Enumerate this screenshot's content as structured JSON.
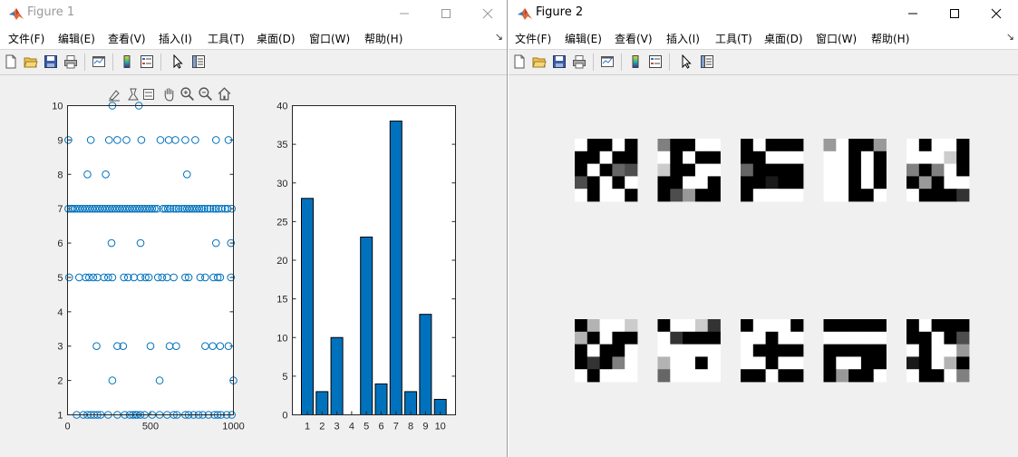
{
  "window1": {
    "title": "Figure 1",
    "menu": [
      "文件(F)",
      "编辑(E)",
      "查看(V)",
      "插入(I)",
      "工具(T)",
      "桌面(D)",
      "窗口(W)",
      "帮助(H)"
    ],
    "toolbar_icons": [
      "new-file-icon",
      "open-folder-icon",
      "save-icon",
      "print-icon",
      "link-plot-icon",
      "colorbar-icon",
      "legend-icon",
      "pointer-icon",
      "property-inspector-icon"
    ],
    "axes_toolbar_icons": [
      "brush-icon",
      "data-tip-icon",
      "legend-toggle-icon",
      "pan-icon",
      "zoom-in-icon",
      "zoom-out-icon",
      "home-icon"
    ]
  },
  "window2": {
    "title": "Figure 2",
    "menu": [
      "文件(F)",
      "编辑(E)",
      "查看(V)",
      "插入(I)",
      "工具(T)",
      "桌面(D)",
      "窗口(W)",
      "帮助(H)"
    ],
    "toolbar_icons": [
      "new-file-icon",
      "open-folder-icon",
      "save-icon",
      "print-icon",
      "link-plot-icon",
      "colorbar-icon",
      "legend-icon",
      "pointer-icon",
      "property-inspector-icon"
    ]
  },
  "colors": {
    "marker": "#0072bd",
    "bar_fill": "#0072bd",
    "axes_bg": "#ffffff",
    "figure_bg": "#f0f0f0"
  },
  "chart_data": [
    {
      "type": "scatter",
      "marker": "circle-open",
      "xlim": [
        0,
        1000
      ],
      "ylim": [
        1,
        10
      ],
      "x_ticks": [
        "0",
        "500",
        "1000"
      ],
      "y_ticks": [
        "1",
        "2",
        "3",
        "4",
        "5",
        "6",
        "7",
        "8",
        "9",
        "10"
      ],
      "points": [
        [
          5,
          9
        ],
        [
          10,
          5
        ],
        [
          5,
          7
        ],
        [
          20,
          7
        ],
        [
          30,
          7
        ],
        [
          45,
          7
        ],
        [
          60,
          7
        ],
        [
          75,
          7
        ],
        [
          90,
          7
        ],
        [
          105,
          7
        ],
        [
          120,
          7
        ],
        [
          135,
          7
        ],
        [
          150,
          7
        ],
        [
          165,
          7
        ],
        [
          180,
          7
        ],
        [
          195,
          7
        ],
        [
          210,
          7
        ],
        [
          225,
          7
        ],
        [
          240,
          7
        ],
        [
          255,
          7
        ],
        [
          270,
          7
        ],
        [
          285,
          7
        ],
        [
          300,
          7
        ],
        [
          315,
          7
        ],
        [
          330,
          7
        ],
        [
          345,
          7
        ],
        [
          360,
          7
        ],
        [
          375,
          7
        ],
        [
          390,
          7
        ],
        [
          405,
          7
        ],
        [
          420,
          7
        ],
        [
          435,
          7
        ],
        [
          450,
          7
        ],
        [
          465,
          7
        ],
        [
          480,
          7
        ],
        [
          495,
          7
        ],
        [
          510,
          7
        ],
        [
          525,
          7
        ],
        [
          540,
          7
        ],
        [
          575,
          7
        ],
        [
          590,
          7
        ],
        [
          605,
          7
        ],
        [
          620,
          7
        ],
        [
          640,
          7
        ],
        [
          655,
          7
        ],
        [
          670,
          7
        ],
        [
          690,
          7
        ],
        [
          705,
          7
        ],
        [
          720,
          7
        ],
        [
          735,
          7
        ],
        [
          750,
          7
        ],
        [
          765,
          7
        ],
        [
          780,
          7
        ],
        [
          795,
          7
        ],
        [
          810,
          7
        ],
        [
          825,
          7
        ],
        [
          845,
          7
        ],
        [
          860,
          7
        ],
        [
          880,
          7
        ],
        [
          895,
          7
        ],
        [
          910,
          7
        ],
        [
          930,
          7
        ],
        [
          950,
          7
        ],
        [
          965,
          7
        ],
        [
          990,
          7
        ],
        [
          70,
          5
        ],
        [
          110,
          5
        ],
        [
          130,
          5
        ],
        [
          155,
          5
        ],
        [
          180,
          5
        ],
        [
          220,
          5
        ],
        [
          245,
          5
        ],
        [
          270,
          5
        ],
        [
          340,
          5
        ],
        [
          365,
          5
        ],
        [
          400,
          5
        ],
        [
          440,
          5
        ],
        [
          470,
          5
        ],
        [
          490,
          5
        ],
        [
          545,
          5
        ],
        [
          570,
          5
        ],
        [
          600,
          5
        ],
        [
          640,
          5
        ],
        [
          710,
          5
        ],
        [
          730,
          5
        ],
        [
          800,
          5
        ],
        [
          830,
          5
        ],
        [
          880,
          5
        ],
        [
          905,
          5
        ],
        [
          920,
          5
        ],
        [
          985,
          5
        ],
        [
          55,
          1
        ],
        [
          95,
          1
        ],
        [
          120,
          1
        ],
        [
          140,
          1
        ],
        [
          160,
          1
        ],
        [
          180,
          1
        ],
        [
          200,
          1
        ],
        [
          245,
          1
        ],
        [
          300,
          1
        ],
        [
          345,
          1
        ],
        [
          375,
          1
        ],
        [
          395,
          1
        ],
        [
          410,
          1
        ],
        [
          420,
          1
        ],
        [
          440,
          1
        ],
        [
          465,
          1
        ],
        [
          510,
          1
        ],
        [
          555,
          1
        ],
        [
          600,
          1
        ],
        [
          640,
          1
        ],
        [
          660,
          1
        ],
        [
          710,
          1
        ],
        [
          730,
          1
        ],
        [
          760,
          1
        ],
        [
          790,
          1
        ],
        [
          815,
          1
        ],
        [
          850,
          1
        ],
        [
          885,
          1
        ],
        [
          905,
          1
        ],
        [
          925,
          1
        ],
        [
          960,
          1
        ],
        [
          990,
          1
        ],
        [
          140,
          9
        ],
        [
          250,
          9
        ],
        [
          300,
          9
        ],
        [
          355,
          9
        ],
        [
          445,
          9
        ],
        [
          560,
          9
        ],
        [
          610,
          9
        ],
        [
          650,
          9
        ],
        [
          710,
          9
        ],
        [
          770,
          9
        ],
        [
          895,
          9
        ],
        [
          970,
          9
        ],
        [
          270,
          10
        ],
        [
          430,
          10
        ],
        [
          120,
          8
        ],
        [
          230,
          8
        ],
        [
          720,
          8
        ],
        [
          265,
          6
        ],
        [
          440,
          6
        ],
        [
          895,
          6
        ],
        [
          985,
          6
        ],
        [
          175,
          3
        ],
        [
          300,
          3
        ],
        [
          335,
          3
        ],
        [
          500,
          3
        ],
        [
          615,
          3
        ],
        [
          655,
          3
        ],
        [
          830,
          3
        ],
        [
          875,
          3
        ],
        [
          920,
          3
        ],
        [
          970,
          3
        ],
        [
          270,
          2
        ],
        [
          555,
          2
        ],
        [
          1000,
          2
        ]
      ]
    },
    {
      "type": "bar",
      "categories": [
        "1",
        "2",
        "3",
        "4",
        "5",
        "6",
        "7",
        "8",
        "9",
        "10"
      ],
      "values": [
        28,
        3,
        10,
        0,
        23,
        4,
        38,
        3,
        13,
        2
      ],
      "ylim": [
        0,
        40
      ],
      "y_ticks": [
        "0",
        "5",
        "10",
        "15",
        "20",
        "25",
        "30",
        "35",
        "40"
      ]
    },
    {
      "type": "heatmap",
      "colormap": "gray",
      "grid": [
        2,
        5
      ],
      "images": [
        [
          [
            1,
            0,
            0,
            1,
            0
          ],
          [
            0,
            0,
            1,
            0,
            0
          ],
          [
            0,
            1,
            0,
            0.4,
            0.3
          ],
          [
            0.3,
            0,
            1,
            0,
            1
          ],
          [
            1,
            0,
            1,
            1,
            0
          ]
        ],
        [
          [
            0.5,
            0,
            0,
            1,
            1
          ],
          [
            1,
            0,
            1,
            0,
            0
          ],
          [
            0.8,
            0,
            0,
            1,
            1
          ],
          [
            0,
            0,
            1,
            1,
            0
          ],
          [
            0,
            0.3,
            0.6,
            0,
            0
          ]
        ],
        [
          [
            0,
            1,
            0,
            0,
            0
          ],
          [
            0,
            0,
            1,
            1,
            1
          ],
          [
            0.4,
            0,
            0,
            0,
            0
          ],
          [
            0,
            0,
            0.1,
            0,
            0
          ],
          [
            0,
            1,
            1,
            1,
            1
          ]
        ],
        [
          [
            0.6,
            1,
            0,
            0,
            0.6
          ],
          [
            1,
            1,
            0,
            1,
            0
          ],
          [
            1,
            1,
            0,
            1,
            0
          ],
          [
            1,
            1,
            0,
            1,
            0
          ],
          [
            1,
            1,
            0,
            0,
            1
          ]
        ],
        [
          [
            1,
            0,
            1,
            1,
            0
          ],
          [
            1,
            1,
            1,
            0.8,
            0
          ],
          [
            0.5,
            0,
            0.5,
            1,
            0
          ],
          [
            0,
            0.6,
            0,
            1,
            1
          ],
          [
            1,
            0,
            0,
            0,
            0.2
          ]
        ],
        [
          [
            0,
            0.7,
            1,
            1,
            0.8
          ],
          [
            0.7,
            0,
            1,
            0,
            0
          ],
          [
            0,
            1,
            0,
            0,
            1
          ],
          [
            0,
            0.2,
            0,
            0.5,
            1
          ],
          [
            1,
            0,
            1,
            1,
            1
          ]
        ],
        [
          [
            0,
            1,
            1,
            0.8,
            0.2
          ],
          [
            1,
            0.2,
            0,
            0,
            0
          ],
          [
            1,
            1,
            1,
            1,
            1
          ],
          [
            0.7,
            1,
            1,
            0,
            1
          ],
          [
            0.4,
            1,
            1,
            1,
            1
          ]
        ],
        [
          [
            0,
            1,
            1,
            1,
            0
          ],
          [
            1,
            1,
            0,
            1,
            1
          ],
          [
            1,
            0,
            0,
            0,
            0
          ],
          [
            1,
            1,
            0,
            1,
            1
          ],
          [
            0,
            0,
            1,
            0,
            0
          ]
        ],
        [
          [
            0,
            0,
            0,
            0,
            0
          ],
          [
            1,
            1,
            1,
            1,
            1
          ],
          [
            0,
            0,
            0,
            0,
            0
          ],
          [
            0,
            1,
            1,
            0,
            0
          ],
          [
            0,
            0.6,
            0,
            0,
            1
          ]
        ],
        [
          [
            0,
            1,
            0,
            0,
            0
          ],
          [
            0,
            0,
            1,
            0,
            0.3
          ],
          [
            1,
            0,
            1,
            1,
            0.6
          ],
          [
            0.1,
            0,
            1,
            0.7,
            0
          ],
          [
            1,
            0,
            0,
            1,
            0.5
          ]
        ]
      ]
    }
  ]
}
